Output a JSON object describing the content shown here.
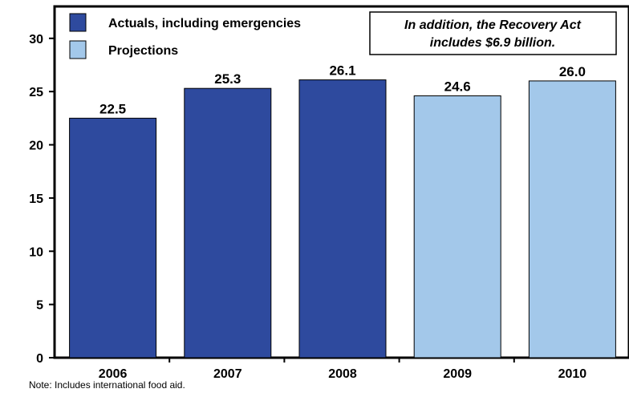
{
  "chart_data": {
    "type": "bar",
    "categories": [
      "2006",
      "2007",
      "2008",
      "2009",
      "2010"
    ],
    "values": [
      22.5,
      25.3,
      26.1,
      24.6,
      26.0
    ],
    "value_labels": [
      "22.5",
      "25.3",
      "26.1",
      "24.6",
      "26.0"
    ],
    "bar_kind": [
      "actual",
      "actual",
      "actual",
      "projection",
      "projection"
    ],
    "title": "",
    "xlabel": "",
    "ylabel": "",
    "ylim": [
      0,
      33
    ],
    "yticks": [
      0,
      5,
      10,
      15,
      20,
      25,
      30
    ],
    "grid": false,
    "legend": {
      "placement": "top-left",
      "entries": [
        {
          "key": "actual",
          "label": "Actuals, including emergencies",
          "color": "#2e4a9e"
        },
        {
          "key": "projection",
          "label": "Projections",
          "color": "#a3c8ea"
        }
      ]
    },
    "annotation": {
      "line1": "In addition, the Recovery Act",
      "line2": "includes $6.9 billion."
    }
  },
  "note": "Note:  Includes international food aid."
}
